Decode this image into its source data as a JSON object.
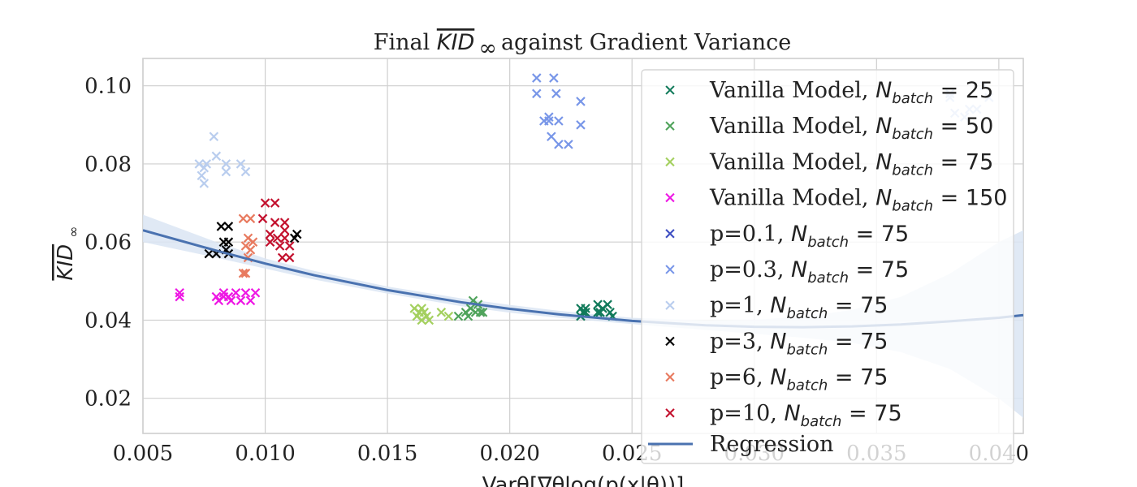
{
  "chart_data": {
    "type": "scatter",
    "title": "Final KID∞ against Gradient Variance",
    "title_parts": {
      "prefix": "Final ",
      "kid": "KID",
      "sub": "∞",
      "suffix": " against Gradient Variance"
    },
    "ylabel": {
      "kid": "KID",
      "sub": "∞"
    },
    "xlabel": "Varθ[∇θlog(p(x|θ))]",
    "xlim": [
      0.005,
      0.041
    ],
    "ylim": [
      0.011,
      0.107
    ],
    "xticks": [
      "0.005",
      "0.010",
      "0.015",
      "0.020",
      "0.025",
      "0.030",
      "0.035",
      "0.040"
    ],
    "yticks": [
      "0.02",
      "0.04",
      "0.06",
      "0.08",
      "0.10"
    ],
    "grid": true,
    "legend_placement": "top-right",
    "series": [
      {
        "name": "Vanilla Model, N_batch = 25",
        "label_main": "Vanilla Model, ",
        "label_n": "25",
        "color": "#117a5a",
        "points": [
          [
            0.0229,
            0.043
          ],
          [
            0.023,
            0.042
          ],
          [
            0.0229,
            0.041
          ],
          [
            0.0231,
            0.043
          ],
          [
            0.0236,
            0.044
          ],
          [
            0.0236,
            0.042
          ],
          [
            0.0238,
            0.043
          ],
          [
            0.024,
            0.044
          ],
          [
            0.0242,
            0.041
          ],
          [
            0.0241,
            0.042
          ],
          [
            0.0237,
            0.042
          ],
          [
            0.0231,
            0.042
          ]
        ]
      },
      {
        "name": "Vanilla Model, N_batch = 50",
        "label_main": "Vanilla Model, ",
        "label_n": "50",
        "color": "#4fa35b",
        "points": [
          [
            0.0179,
            0.041
          ],
          [
            0.0182,
            0.042
          ],
          [
            0.0184,
            0.043
          ],
          [
            0.0185,
            0.045
          ],
          [
            0.0186,
            0.042
          ],
          [
            0.0188,
            0.042
          ],
          [
            0.0183,
            0.041
          ],
          [
            0.0187,
            0.044
          ],
          [
            0.0189,
            0.042
          ]
        ]
      },
      {
        "name": "Vanilla Model, N_batch = 75",
        "label_main": "Vanilla Model, ",
        "label_n": "75",
        "color": "#a4d05f",
        "points": [
          [
            0.0161,
            0.043
          ],
          [
            0.0162,
            0.041
          ],
          [
            0.0163,
            0.042
          ],
          [
            0.0164,
            0.04
          ],
          [
            0.0165,
            0.042
          ],
          [
            0.0166,
            0.041
          ],
          [
            0.0167,
            0.04
          ],
          [
            0.0164,
            0.043
          ],
          [
            0.0172,
            0.042
          ],
          [
            0.0175,
            0.041
          ]
        ]
      },
      {
        "name": "Vanilla Model, N_batch = 150",
        "label_main": "Vanilla Model, ",
        "label_n": "150",
        "color": "#ee17e4",
        "points": [
          [
            0.0065,
            0.046
          ],
          [
            0.0065,
            0.047
          ],
          [
            0.008,
            0.046
          ],
          [
            0.0081,
            0.045
          ],
          [
            0.0083,
            0.046
          ],
          [
            0.0085,
            0.046
          ],
          [
            0.0086,
            0.045
          ],
          [
            0.0088,
            0.047
          ],
          [
            0.009,
            0.045
          ],
          [
            0.0092,
            0.047
          ],
          [
            0.0094,
            0.045
          ],
          [
            0.0096,
            0.047
          ],
          [
            0.0083,
            0.047
          ]
        ]
      },
      {
        "name": "p=0.1, N_batch = 75",
        "label_main": "p=0.1, ",
        "label_n": "75",
        "color": "#3e4ec2",
        "points": []
      },
      {
        "name": "p=0.3, N_batch = 75",
        "label_main": "p=0.3, ",
        "label_n": "75",
        "color": "#7896e8",
        "points": [
          [
            0.0211,
            0.102
          ],
          [
            0.0211,
            0.098
          ],
          [
            0.0214,
            0.091
          ],
          [
            0.0216,
            0.092
          ],
          [
            0.0217,
            0.087
          ],
          [
            0.0218,
            0.102
          ],
          [
            0.0219,
            0.098
          ],
          [
            0.022,
            0.085
          ],
          [
            0.0224,
            0.085
          ],
          [
            0.0229,
            0.096
          ],
          [
            0.0229,
            0.09
          ],
          [
            0.0216,
            0.091
          ],
          [
            0.022,
            0.091
          ]
        ]
      },
      {
        "name": "p=1, N_batch = 75",
        "label_main": "p=1, ",
        "label_n": "75",
        "color": "#b9cdee",
        "points": [
          [
            0.0073,
            0.08
          ],
          [
            0.0074,
            0.077
          ],
          [
            0.0075,
            0.075
          ],
          [
            0.0076,
            0.08
          ],
          [
            0.0079,
            0.087
          ],
          [
            0.008,
            0.082
          ],
          [
            0.0084,
            0.08
          ],
          [
            0.0084,
            0.078
          ],
          [
            0.009,
            0.08
          ],
          [
            0.0092,
            0.078
          ],
          [
            0.0075,
            0.079
          ],
          [
            0.038,
            0.097
          ],
          [
            0.0382,
            0.093
          ],
          [
            0.0386,
            0.092
          ],
          [
            0.0388,
            0.094
          ],
          [
            0.0391,
            0.094
          ],
          [
            0.0394,
            0.1
          ],
          [
            0.0396,
            0.097
          ],
          [
            0.038,
            0.098
          ]
        ]
      },
      {
        "name": "p=3, N_batch = 75",
        "label_main": "p=3, ",
        "label_n": "75",
        "color": "#000000",
        "points": [
          [
            0.0082,
            0.064
          ],
          [
            0.0085,
            0.064
          ],
          [
            0.0083,
            0.06
          ],
          [
            0.0085,
            0.06
          ],
          [
            0.0084,
            0.058
          ],
          [
            0.0077,
            0.057
          ],
          [
            0.008,
            0.057
          ],
          [
            0.0085,
            0.057
          ],
          [
            0.0113,
            0.062
          ],
          [
            0.0112,
            0.061
          ]
        ]
      },
      {
        "name": "p=6, N_batch = 75",
        "label_main": "p=6, ",
        "label_n": "75",
        "color": "#e87a5f",
        "points": [
          [
            0.0091,
            0.066
          ],
          [
            0.0094,
            0.066
          ],
          [
            0.0093,
            0.061
          ],
          [
            0.0092,
            0.059
          ],
          [
            0.0094,
            0.058
          ],
          [
            0.0093,
            0.056
          ],
          [
            0.0092,
            0.052
          ],
          [
            0.0091,
            0.052
          ],
          [
            0.0095,
            0.06
          ]
        ]
      },
      {
        "name": "p=10, N_batch = 75",
        "label_main": "p=10, ",
        "label_n": "75",
        "color": "#c3112e",
        "points": [
          [
            0.01,
            0.07
          ],
          [
            0.0104,
            0.07
          ],
          [
            0.0099,
            0.066
          ],
          [
            0.0104,
            0.065
          ],
          [
            0.0108,
            0.065
          ],
          [
            0.0102,
            0.062
          ],
          [
            0.0105,
            0.061
          ],
          [
            0.0108,
            0.061
          ],
          [
            0.011,
            0.059
          ],
          [
            0.0106,
            0.059
          ],
          [
            0.0102,
            0.06
          ],
          [
            0.0107,
            0.056
          ],
          [
            0.011,
            0.056
          ],
          [
            0.0108,
            0.063
          ]
        ]
      }
    ],
    "regression": {
      "name": "Regression",
      "color": "#4a72b0",
      "band_color": "#dbe5f3",
      "points": [
        [
          0.005,
          0.063
        ],
        [
          0.008,
          0.0578
        ],
        [
          0.01,
          0.0545
        ],
        [
          0.012,
          0.0515
        ],
        [
          0.015,
          0.0477
        ],
        [
          0.018,
          0.0446
        ],
        [
          0.02,
          0.0429
        ],
        [
          0.022,
          0.0415
        ],
        [
          0.025,
          0.0398
        ],
        [
          0.028,
          0.0387
        ],
        [
          0.03,
          0.0383
        ],
        [
          0.032,
          0.0382
        ],
        [
          0.034,
          0.0384
        ],
        [
          0.036,
          0.0389
        ],
        [
          0.038,
          0.0397
        ],
        [
          0.04,
          0.0406
        ],
        [
          0.041,
          0.0413
        ]
      ],
      "band": [
        [
          0.005,
          0.06,
          0.067
        ],
        [
          0.008,
          0.056,
          0.06
        ],
        [
          0.01,
          0.0532,
          0.0558
        ],
        [
          0.012,
          0.0504,
          0.0526
        ],
        [
          0.015,
          0.0468,
          0.0486
        ],
        [
          0.018,
          0.0436,
          0.0456
        ],
        [
          0.02,
          0.0419,
          0.0439
        ],
        [
          0.022,
          0.0406,
          0.0424
        ],
        [
          0.025,
          0.039,
          0.0406
        ],
        [
          0.028,
          0.0375,
          0.0399
        ],
        [
          0.03,
          0.0365,
          0.0401
        ],
        [
          0.032,
          0.0355,
          0.0409
        ],
        [
          0.034,
          0.0342,
          0.0426
        ],
        [
          0.036,
          0.0318,
          0.046
        ],
        [
          0.038,
          0.0275,
          0.0519
        ],
        [
          0.04,
          0.02,
          0.06
        ],
        [
          0.041,
          0.015,
          0.063
        ]
      ]
    }
  }
}
